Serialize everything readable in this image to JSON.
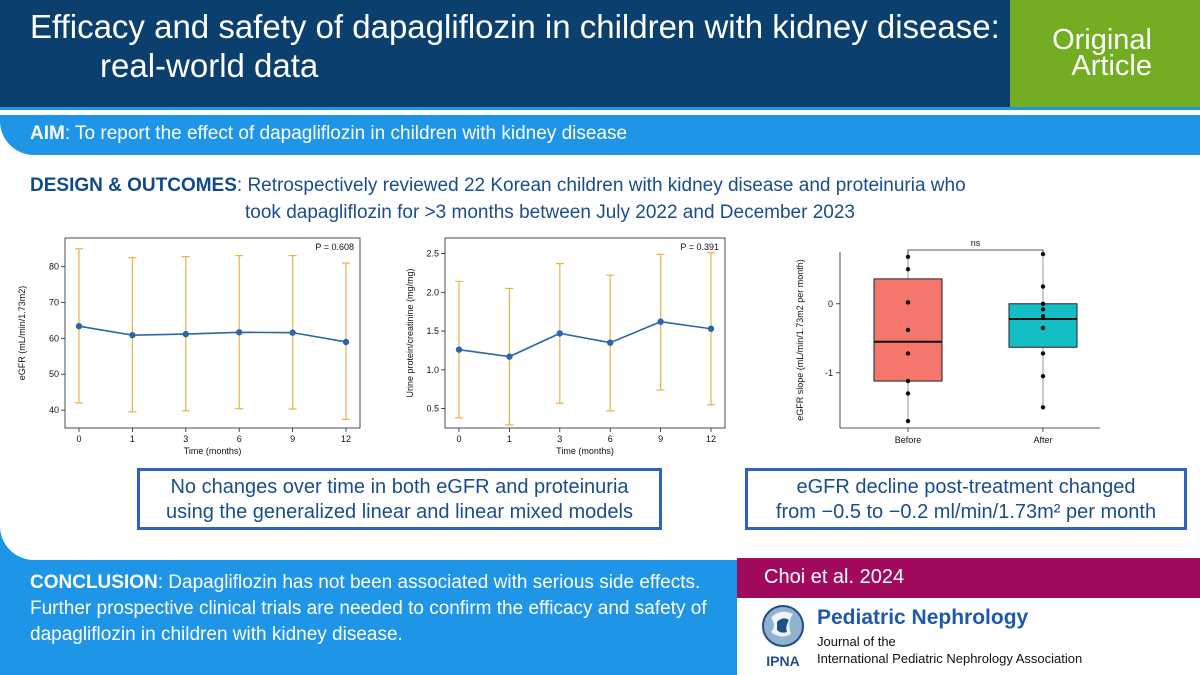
{
  "header": {
    "title_line1": "Efficacy and safety of dapagliflozin in children with kidney disease:",
    "title_line2": "real-world data",
    "tag_line1": "Original",
    "tag_line2": "Article"
  },
  "aim": {
    "label": "AIM",
    "text": ": To report the effect of dapagliflozin in children with kidney disease"
  },
  "design": {
    "label": "DESIGN & OUTCOMES",
    "text_line1": ": Retrospectively reviewed 22 Korean children with kidney disease and proteinuria who",
    "text_line2": "took dapagliflozin for >3 months between July 2022 and December 2023"
  },
  "chart_data": [
    {
      "type": "line",
      "annotation": "P = 0.608",
      "xlabel": "Time (months)",
      "ylabel": "eGFR (mL/min/1.73m2)",
      "categories": [
        "0",
        "1",
        "3",
        "6",
        "9",
        "12"
      ],
      "values": [
        63.4,
        60.9,
        61.2,
        61.7,
        61.6,
        59.0
      ],
      "error_upper": [
        85.0,
        82.5,
        82.8,
        83.1,
        83.1,
        81.0
      ],
      "error_lower": [
        42.0,
        39.5,
        39.8,
        40.4,
        40.3,
        37.4
      ],
      "yticks": [
        40,
        50,
        60,
        70,
        80
      ],
      "ylim": [
        35,
        88
      ],
      "line_color": "#2b66a6",
      "error_color": "#e9b24a"
    },
    {
      "type": "line",
      "annotation": "P = 0.391",
      "xlabel": "Time (months)",
      "ylabel": "Urine protein/creatinine (mg/mg)",
      "categories": [
        "0",
        "1",
        "3",
        "6",
        "9",
        "12"
      ],
      "values": [
        1.26,
        1.17,
        1.47,
        1.35,
        1.62,
        1.53
      ],
      "error_upper": [
        2.14,
        2.05,
        2.37,
        2.22,
        2.49,
        2.51
      ],
      "error_lower": [
        0.38,
        0.29,
        0.57,
        0.47,
        0.74,
        0.55
      ],
      "yticks": [
        0.5,
        1.0,
        1.5,
        2.0,
        2.5
      ],
      "ytick_labels": [
        "0.5",
        "1.0",
        "1.5",
        "2.0",
        "2.5"
      ],
      "ylim": [
        0.25,
        2.7
      ],
      "line_color": "#2b66a6",
      "error_color": "#e9b24a"
    },
    {
      "type": "box",
      "annotation": "ns",
      "xlabel": "",
      "ylabel": "eGFR slope (mL/min/1.73m2 per month)",
      "categories": [
        "Before",
        "After"
      ],
      "yticks": [
        -1,
        0
      ],
      "ylim": [
        -1.8,
        0.75
      ],
      "boxes": [
        {
          "name": "Before",
          "q1": -1.12,
          "median": -0.55,
          "q3": 0.36,
          "whisker_low": -1.7,
          "whisker_high": 0.68,
          "color": "#f5766d",
          "points": [
            0.68,
            0.5,
            0.02,
            -0.38,
            -0.72,
            -1.12,
            -1.3,
            -1.7
          ]
        },
        {
          "name": "After",
          "q1": -0.63,
          "median": -0.22,
          "q3": 0.0,
          "whisker_low": -1.5,
          "whisker_high": 0.72,
          "color": "#13bfc4",
          "points": [
            0.72,
            0.25,
            0.0,
            -0.08,
            -0.18,
            -0.35,
            -0.72,
            -1.05,
            -1.5
          ]
        }
      ]
    }
  ],
  "summary": {
    "left_line1": "No changes over time in both eGFR and proteinuria",
    "left_line2": "using the generalized linear and linear mixed models",
    "right_line1": "eGFR decline post-treatment changed",
    "right_line2": "from −0.5 to −0.2 ml/min/1.73m² per month"
  },
  "conclusion": {
    "label": "CONCLUSION",
    "text": ": Dapagliflozin has not been associated with serious side effects. Further prospective clinical trials are needed to confirm the efficacy and safety of dapagliflozin in children with kidney disease."
  },
  "citation": "Choi et al. 2024",
  "journal": {
    "name": "Pediatric Nephrology",
    "sub_line1": "Journal of the",
    "sub_line2": "International  Pediatric Nephrology Association",
    "logo_text": "IPNA"
  },
  "colors": {
    "header_bg": "#0b3f6e",
    "tag_bg": "#72ad22",
    "accent_blue": "#1e95e6",
    "citation_bg": "#a20a5e",
    "summary_border": "#2e63c0"
  }
}
